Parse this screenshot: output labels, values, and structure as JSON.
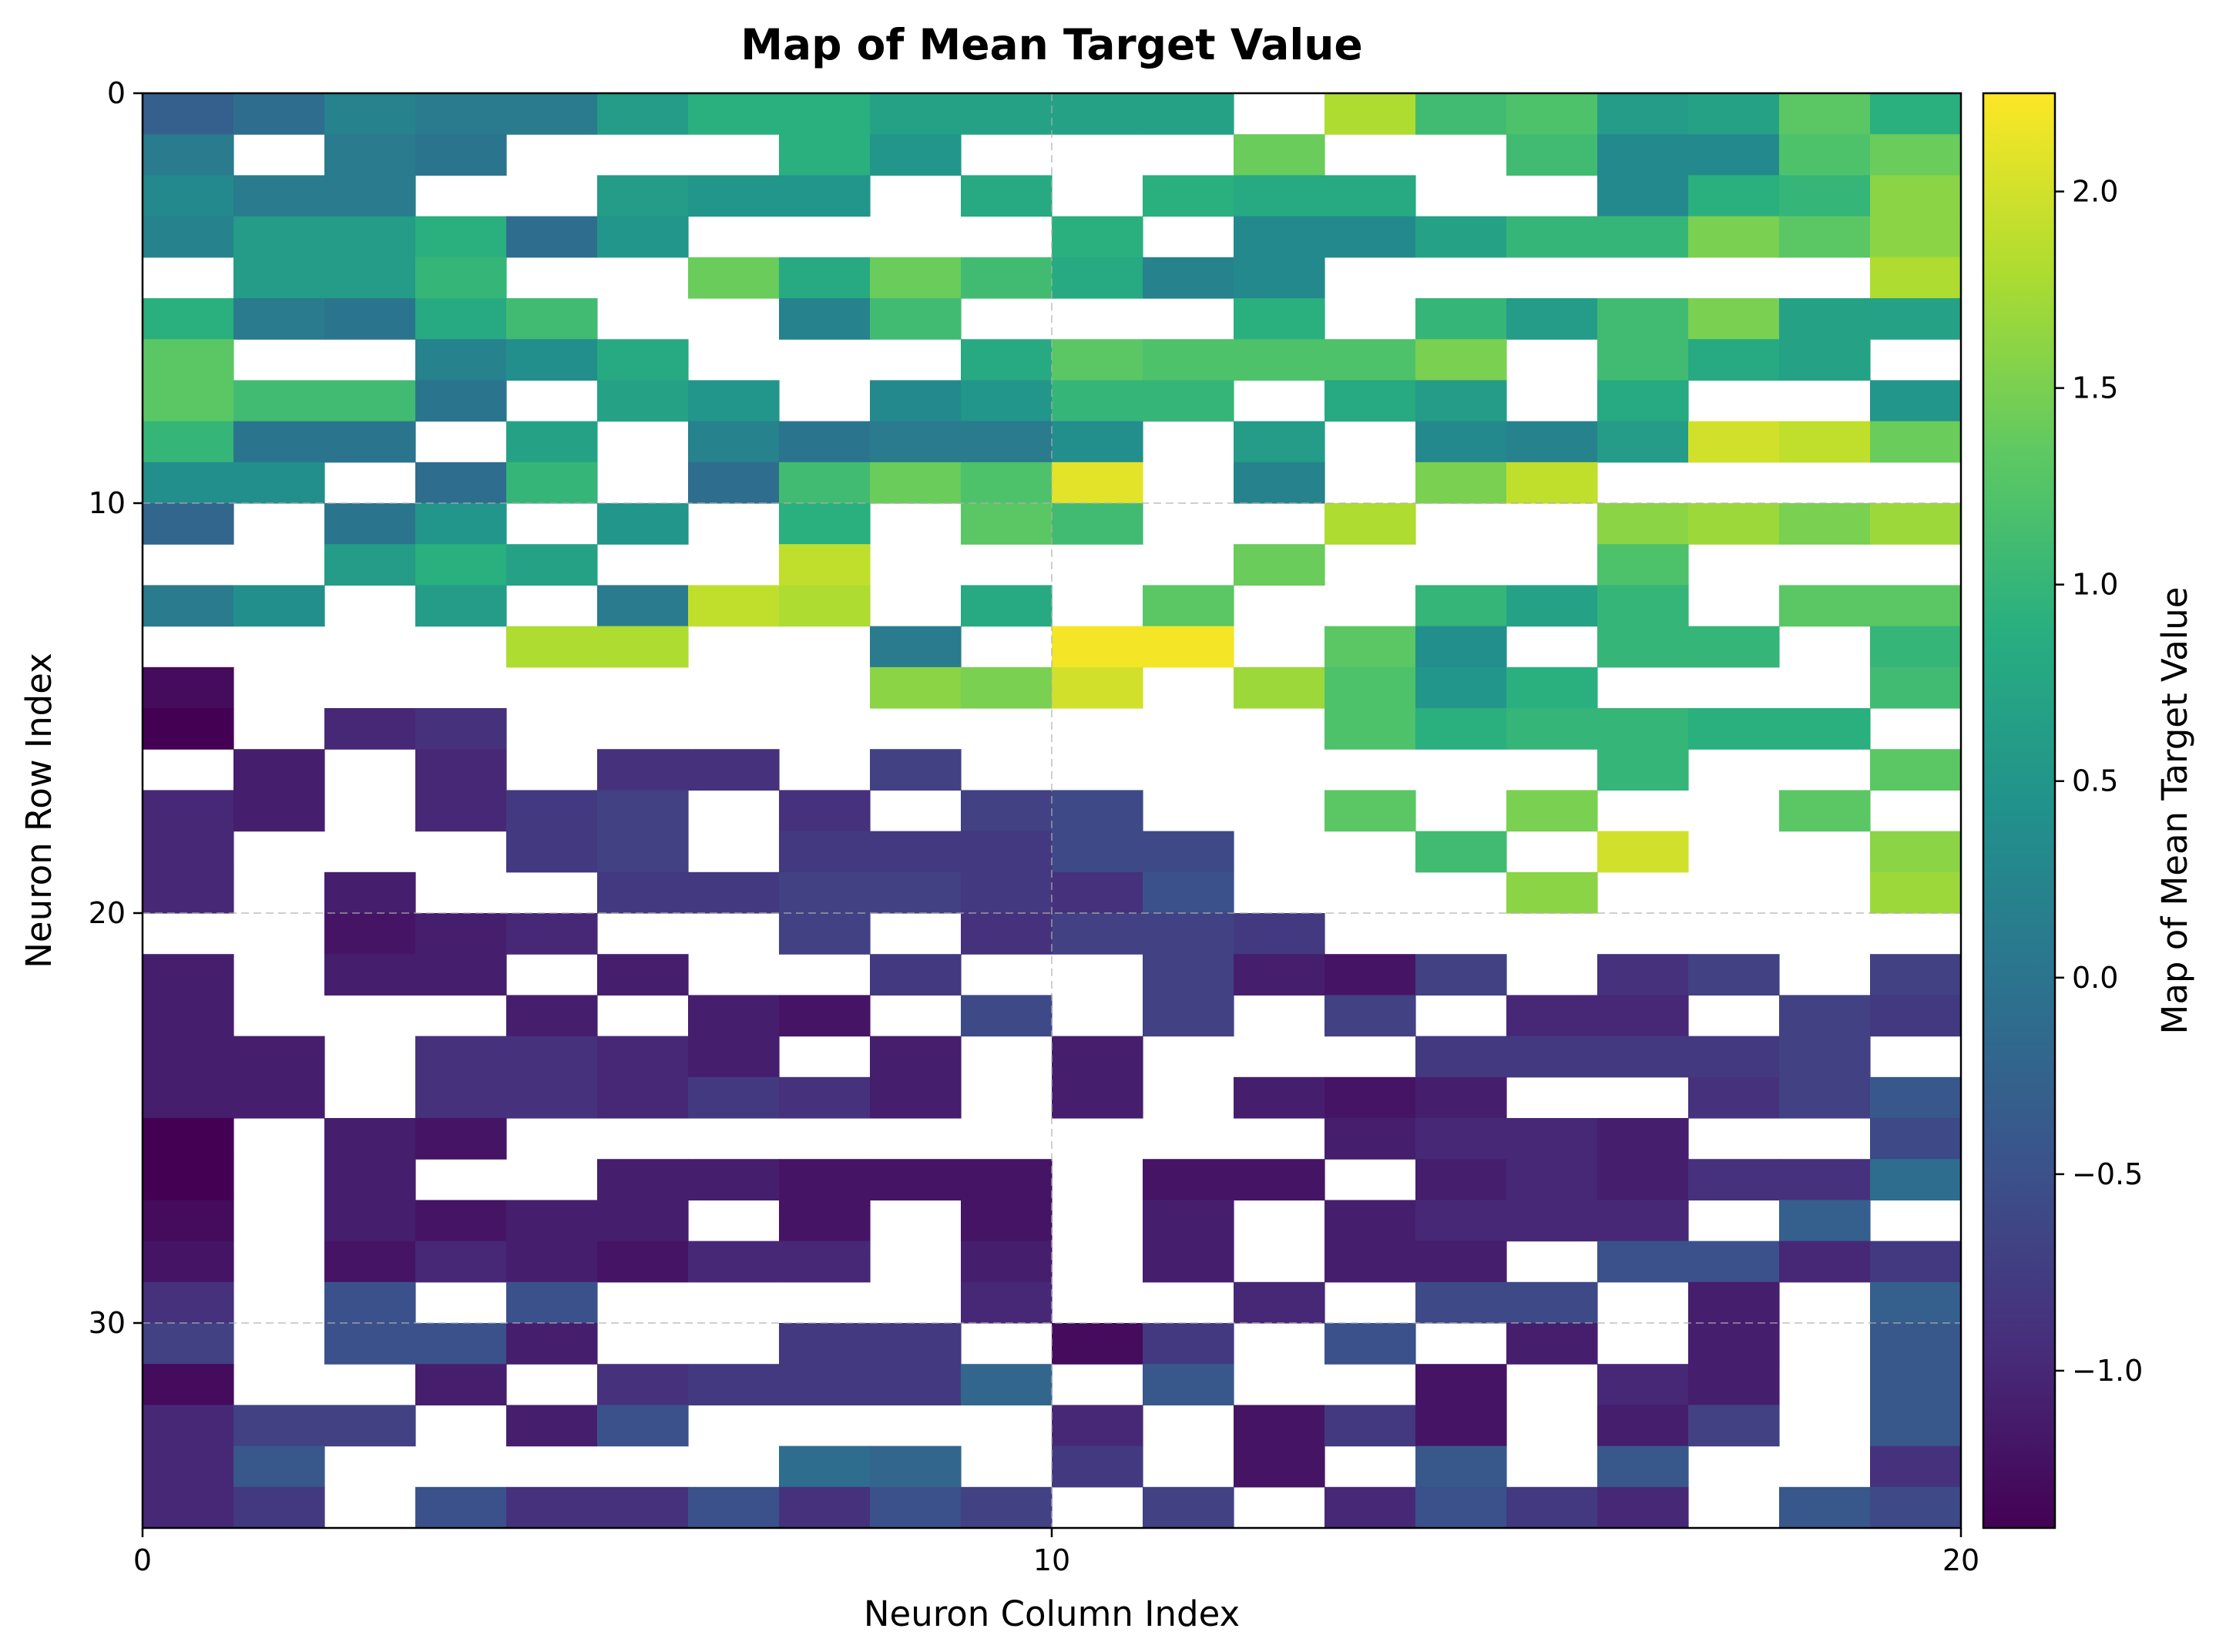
{
  "chart_data": {
    "type": "heatmap",
    "title": "Map of Mean Target Value",
    "xlabel": "Neuron Column Index",
    "ylabel": "Neuron Row Index",
    "colorbar_label": "Map of Mean Target Value",
    "colormap": "viridis",
    "xlim": [
      0,
      20
    ],
    "ylim": [
      35,
      0
    ],
    "x_ticks": [
      0,
      10,
      20
    ],
    "y_ticks": [
      0,
      10,
      20,
      30
    ],
    "colorbar_ticks": [
      2.0,
      1.5,
      1.0,
      0.5,
      0.0,
      -0.5,
      -1.0
    ],
    "colorbar_tick_labels": [
      "2.0",
      "1.5",
      "1.0",
      "0.5",
      "0.0",
      "−0.5",
      "−1.0"
    ],
    "vmin": -1.4,
    "vmax": 2.25,
    "grid": "dashed gray lines at major ticks",
    "n_rows": 35,
    "n_cols": 20,
    "missing_value": null,
    "values": [
      [
        -0.3,
        -0.1,
        0.2,
        0.1,
        0.1,
        0.6,
        0.9,
        0.9,
        0.7,
        0.7,
        0.7,
        0.7,
        null,
        1.8,
        1.1,
        1.2,
        0.6,
        0.7,
        1.3,
        0.9
      ],
      [
        0.1,
        null,
        0.1,
        0.0,
        null,
        null,
        null,
        0.9,
        0.5,
        null,
        null,
        null,
        1.4,
        null,
        null,
        1.1,
        0.3,
        0.3,
        1.2,
        1.4
      ],
      [
        0.3,
        0.1,
        0.1,
        null,
        null,
        0.6,
        0.5,
        0.5,
        null,
        0.8,
        null,
        0.9,
        0.8,
        0.8,
        null,
        null,
        0.3,
        0.9,
        1.0,
        1.6
      ],
      [
        0.2,
        0.6,
        0.6,
        0.9,
        -0.1,
        0.5,
        null,
        null,
        null,
        null,
        0.9,
        null,
        0.3,
        0.3,
        0.7,
        1.0,
        1.0,
        1.5,
        1.3,
        1.6
      ],
      [
        null,
        0.6,
        0.6,
        1.0,
        null,
        null,
        1.4,
        0.8,
        1.4,
        1.1,
        0.8,
        0.2,
        0.3,
        null,
        null,
        null,
        null,
        null,
        null,
        1.8
      ],
      [
        0.9,
        0.1,
        0.0,
        0.8,
        1.1,
        null,
        null,
        0.2,
        1.1,
        null,
        null,
        null,
        0.9,
        null,
        1.0,
        0.6,
        1.1,
        1.5,
        0.7,
        0.7
      ],
      [
        1.3,
        null,
        null,
        0.2,
        0.4,
        0.8,
        null,
        null,
        null,
        0.8,
        1.3,
        1.2,
        1.2,
        1.2,
        1.5,
        null,
        1.1,
        0.8,
        0.7,
        null
      ],
      [
        1.3,
        1.1,
        1.1,
        0.0,
        null,
        0.7,
        0.5,
        null,
        0.3,
        0.5,
        1.0,
        1.0,
        null,
        0.8,
        0.6,
        null,
        0.8,
        null,
        null,
        0.5
      ],
      [
        1.0,
        0.0,
        0.0,
        null,
        0.7,
        null,
        0.2,
        0.0,
        0.1,
        0.1,
        0.4,
        null,
        0.6,
        null,
        0.3,
        0.2,
        0.6,
        2.0,
        1.9,
        1.4
      ],
      [
        0.4,
        0.4,
        null,
        -0.1,
        1.0,
        null,
        -0.1,
        1.1,
        1.4,
        1.2,
        2.1,
        null,
        0.2,
        null,
        1.5,
        1.9,
        null,
        null,
        null,
        null
      ],
      [
        -0.2,
        null,
        0.0,
        0.5,
        null,
        0.5,
        null,
        0.9,
        null,
        1.3,
        1.1,
        null,
        null,
        1.8,
        null,
        null,
        1.6,
        1.7,
        1.5,
        1.7
      ],
      [
        null,
        null,
        0.6,
        0.9,
        0.7,
        null,
        null,
        1.9,
        null,
        null,
        null,
        null,
        1.4,
        null,
        null,
        null,
        1.2,
        null,
        null,
        null
      ],
      [
        0.1,
        0.4,
        null,
        0.6,
        null,
        0.1,
        1.9,
        1.8,
        null,
        0.8,
        null,
        1.3,
        null,
        null,
        1.0,
        0.7,
        1.0,
        null,
        1.3,
        1.3
      ],
      [
        null,
        null,
        null,
        null,
        1.8,
        1.8,
        null,
        null,
        0.1,
        null,
        2.2,
        2.2,
        null,
        1.3,
        0.4,
        null,
        1.0,
        1.0,
        null,
        1.0
      ],
      [
        -1.3,
        null,
        null,
        null,
        null,
        null,
        null,
        null,
        1.6,
        1.5,
        2.0,
        null,
        1.7,
        1.2,
        0.5,
        0.9,
        null,
        null,
        null,
        1.1
      ],
      [
        -1.4,
        null,
        -1.0,
        -0.9,
        null,
        null,
        null,
        null,
        null,
        null,
        null,
        null,
        null,
        1.2,
        0.9,
        1.0,
        1.0,
        0.9,
        0.9,
        null
      ],
      [
        null,
        -1.1,
        null,
        -1.0,
        null,
        -0.9,
        -0.9,
        null,
        -0.7,
        null,
        null,
        null,
        null,
        null,
        null,
        null,
        1.0,
        null,
        null,
        1.3
      ],
      [
        -1.0,
        -1.1,
        null,
        -1.0,
        -0.8,
        -0.7,
        null,
        -0.9,
        null,
        -0.7,
        -0.6,
        null,
        null,
        1.3,
        null,
        1.5,
        null,
        null,
        1.3,
        null
      ],
      [
        -1.0,
        null,
        null,
        null,
        -0.8,
        -0.7,
        null,
        -0.8,
        -0.8,
        -0.8,
        -0.6,
        -0.6,
        null,
        null,
        1.1,
        null,
        2.0,
        null,
        null,
        1.6
      ],
      [
        -1.0,
        null,
        -1.1,
        null,
        null,
        -0.8,
        -0.8,
        -0.7,
        -0.7,
        -0.8,
        -0.9,
        -0.5,
        null,
        null,
        null,
        1.6,
        null,
        null,
        null,
        1.7
      ],
      [
        null,
        null,
        -1.2,
        -1.1,
        -1.0,
        null,
        null,
        -0.7,
        null,
        -0.9,
        -0.7,
        -0.7,
        -0.8,
        null,
        null,
        null,
        null,
        null,
        null,
        null
      ],
      [
        -1.1,
        null,
        -1.1,
        -1.1,
        null,
        -1.1,
        null,
        null,
        -0.8,
        null,
        null,
        -0.7,
        -1.1,
        -1.2,
        -0.7,
        null,
        -0.9,
        -0.7,
        null,
        -0.7
      ],
      [
        -1.1,
        null,
        null,
        null,
        -1.1,
        null,
        -1.1,
        -1.2,
        null,
        -0.6,
        null,
        -0.7,
        null,
        -0.7,
        null,
        -1.0,
        -1.0,
        null,
        -0.7,
        -0.8
      ],
      [
        -1.1,
        -1.1,
        null,
        -0.9,
        -0.9,
        -1.0,
        -1.1,
        null,
        -1.1,
        null,
        -1.1,
        null,
        null,
        null,
        -0.8,
        -0.8,
        -0.8,
        -0.8,
        -0.7,
        null
      ],
      [
        -1.1,
        -1.1,
        null,
        -0.9,
        -0.9,
        -1.0,
        -0.8,
        -0.9,
        -1.1,
        null,
        -1.1,
        null,
        -1.1,
        -1.2,
        -1.1,
        null,
        null,
        -0.9,
        -0.7,
        -0.4
      ],
      [
        -1.4,
        null,
        -1.1,
        -1.2,
        null,
        null,
        null,
        null,
        null,
        null,
        null,
        null,
        null,
        -1.1,
        -1.0,
        -1.0,
        -1.1,
        null,
        null,
        -0.6
      ],
      [
        -1.4,
        null,
        -1.1,
        null,
        null,
        -1.1,
        -1.1,
        -1.2,
        -1.2,
        -1.2,
        null,
        -1.2,
        -1.2,
        null,
        -1.1,
        -1.0,
        -1.1,
        -0.9,
        -0.9,
        -0.1
      ],
      [
        -1.3,
        null,
        -1.1,
        -1.2,
        -1.1,
        -1.1,
        null,
        -1.2,
        null,
        -1.2,
        null,
        -1.1,
        null,
        -1.1,
        -1.0,
        -1.0,
        -1.0,
        null,
        -0.3,
        null
      ],
      [
        -1.2,
        null,
        -1.2,
        -1.0,
        -1.1,
        -1.2,
        -1.0,
        -1.0,
        null,
        -1.1,
        null,
        -1.1,
        null,
        -1.1,
        -1.1,
        null,
        -0.5,
        -0.5,
        -1.0,
        -0.8
      ],
      [
        -0.9,
        null,
        -0.5,
        null,
        -0.5,
        null,
        null,
        null,
        null,
        -1.0,
        null,
        null,
        -1.0,
        null,
        -0.6,
        -0.6,
        null,
        -1.1,
        null,
        -0.3
      ],
      [
        -0.7,
        null,
        -0.5,
        -0.5,
        -1.1,
        null,
        null,
        -0.8,
        -0.8,
        null,
        -1.3,
        -0.8,
        null,
        -0.5,
        null,
        -1.1,
        null,
        -1.1,
        null,
        -0.4
      ],
      [
        -1.3,
        null,
        null,
        -1.1,
        null,
        -0.9,
        -0.8,
        -0.8,
        -0.8,
        -0.2,
        null,
        -0.4,
        null,
        null,
        -1.2,
        null,
        -1.0,
        -1.1,
        null,
        -0.4
      ],
      [
        -1.0,
        -0.7,
        -0.7,
        null,
        -1.1,
        -0.5,
        null,
        null,
        null,
        null,
        -1.0,
        null,
        -1.2,
        -0.8,
        -1.2,
        null,
        -1.1,
        -0.7,
        null,
        -0.4
      ],
      [
        -1.0,
        -0.4,
        null,
        null,
        null,
        null,
        null,
        -0.1,
        -0.2,
        null,
        -0.8,
        null,
        -1.2,
        null,
        -0.4,
        null,
        -0.4,
        null,
        null,
        -0.9
      ],
      [
        -1.0,
        -0.8,
        null,
        -0.5,
        -0.9,
        -0.9,
        -0.5,
        -0.9,
        -0.5,
        -0.7,
        null,
        -0.7,
        null,
        -1.0,
        -0.5,
        -0.8,
        -1.0,
        null,
        -0.4,
        -0.6
      ]
    ]
  }
}
